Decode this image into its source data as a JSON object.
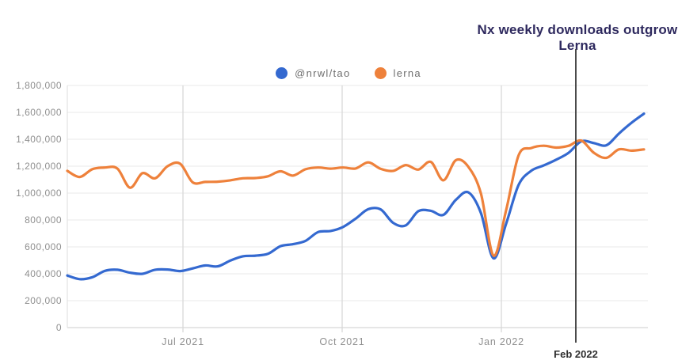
{
  "chart": {
    "title": "Nx weekly downloads outgrow Lerna"
  },
  "colors": {
    "title_text": "#2e295e",
    "axis_text": "#8f8f8f",
    "legend_text": "#6e6e6e",
    "grid_line": "#ededed",
    "baseline": "#d8d8d8",
    "month_grid_line": "#d6d6d6",
    "annotation_line": "#4b4b4b",
    "annotation_text": "#2f2f2f",
    "series_blue": "#3469d0",
    "series_orange": "#ee813b"
  },
  "chart_data": {
    "type": "line",
    "title": "Nx weekly downloads outgrow Lerna",
    "xlabel": "",
    "ylabel": "",
    "ylim": [
      0,
      1800000
    ],
    "grid": true,
    "legend_position": "top-center",
    "x_ticks": [
      "Jul 2021",
      "Oct 2021",
      "Jan 2022"
    ],
    "y_ticks": [
      "1,800,000",
      "1,600,000",
      "1,400,000",
      "1,200,000",
      "1,000,000",
      "800,000",
      "600,000",
      "400,000",
      "200,000",
      "0"
    ],
    "annotation": {
      "label": "Feb 2022"
    },
    "series": [
      {
        "name": "@nrwl/tao",
        "color": "#3469d0",
        "values": [
          387000,
          360000,
          375000,
          422000,
          430000,
          408000,
          400000,
          430000,
          432000,
          420000,
          440000,
          462000,
          455000,
          498000,
          530000,
          535000,
          548000,
          605000,
          620000,
          645000,
          710000,
          718000,
          748000,
          810000,
          880000,
          878000,
          778000,
          760000,
          865000,
          868000,
          838000,
          950000,
          1005000,
          850000,
          515000,
          770000,
          1060000,
          1165000,
          1205000,
          1248000,
          1300000,
          1385000,
          1372000,
          1355000,
          1442000,
          1522000,
          1590000
        ]
      },
      {
        "name": "lerna",
        "color": "#ee813b",
        "values": [
          1165000,
          1120000,
          1178000,
          1190000,
          1182000,
          1040000,
          1148000,
          1110000,
          1200000,
          1218000,
          1080000,
          1083000,
          1085000,
          1095000,
          1110000,
          1112000,
          1125000,
          1162000,
          1130000,
          1177000,
          1190000,
          1182000,
          1190000,
          1183000,
          1228000,
          1180000,
          1165000,
          1208000,
          1175000,
          1232000,
          1095000,
          1245000,
          1195000,
          995000,
          535000,
          870000,
          1280000,
          1335000,
          1352000,
          1338000,
          1352000,
          1390000,
          1300000,
          1262000,
          1325000,
          1315000,
          1325000
        ]
      }
    ]
  }
}
